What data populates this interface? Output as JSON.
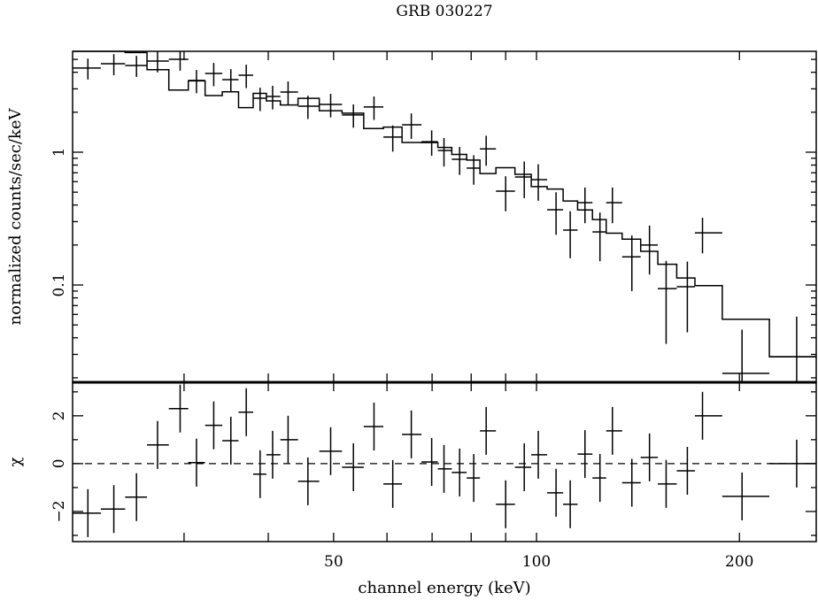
{
  "chart_data": [
    {
      "type": "scatter",
      "panel": "spectrum",
      "title": "GRB 030227",
      "xlabel": "channel energy (keV)",
      "ylabel": "normalized counts/sec/keV",
      "xscale": "log",
      "yscale": "log",
      "xlim": [
        20.5,
        260
      ],
      "ylim": [
        0.0185,
        5.75
      ],
      "y_tick_labels": [
        "1",
        "0.1"
      ],
      "y_tick_values": [
        1,
        0.1
      ],
      "energy_keV": [
        21.6,
        23.6,
        25.5,
        27.4,
        29.6,
        31.3,
        33.2,
        35.2,
        37.1,
        38.9,
        40.6,
        42.8,
        45.8,
        49.5,
        53.5,
        57.4,
        61.2,
        65.2,
        69.9,
        72.9,
        76.9,
        80.7,
        84.2,
        90.0,
        95.9,
        100.6,
        106.9,
        112.2,
        118.0,
        124.2,
        129.6,
        138.5,
        147.1,
        155.7,
        167.4,
        176.3,
        201.8,
        243.2
      ],
      "flux": [
        4.3,
        4.64,
        4.5,
        4.86,
        5.01,
        3.47,
        3.92,
        3.52,
        3.8,
        2.55,
        2.63,
        2.84,
        2.22,
        2.29,
        1.91,
        2.19,
        1.3,
        1.61,
        1.2,
        1.03,
        0.885,
        0.759,
        1.06,
        0.509,
        0.651,
        0.621,
        0.369,
        0.259,
        0.417,
        0.251,
        0.417,
        0.163,
        0.2,
        0.094,
        0.097,
        0.247,
        0.0216,
        0.0288
      ],
      "flux_err": [
        0.77,
        0.84,
        0.81,
        0.87,
        0.9,
        0.69,
        0.78,
        0.7,
        0.76,
        0.51,
        0.53,
        0.57,
        0.44,
        0.46,
        0.38,
        0.44,
        0.29,
        0.35,
        0.26,
        0.25,
        0.21,
        0.19,
        0.27,
        0.15,
        0.2,
        0.19,
        0.13,
        0.1,
        0.125,
        0.1,
        0.125,
        0.073,
        0.08,
        0.058,
        0.053,
        0.074,
        0.0245,
        0.029
      ],
      "series": [
        {
          "name": "data"
        },
        {
          "name": "model"
        }
      ]
    },
    {
      "type": "scatter",
      "panel": "residuals",
      "xlabel": "channel energy (keV)",
      "ylabel": "χ",
      "xscale": "log",
      "xlim": [
        20.5,
        260
      ],
      "ylim": [
        -3.26,
        3.4
      ],
      "x_tick_labels": [
        "50",
        "100",
        "200"
      ],
      "x_tick_values": [
        50,
        100,
        200
      ],
      "y_tick_labels": [
        "2",
        "0",
        "−2"
      ],
      "y_tick_values": [
        2,
        0,
        -2
      ],
      "chi": [
        -2.07,
        -1.9,
        -1.4,
        0.78,
        2.3,
        0.04,
        1.6,
        0.96,
        2.15,
        -0.44,
        0.37,
        1.0,
        -0.74,
        0.52,
        -0.15,
        1.55,
        -0.85,
        1.22,
        0.07,
        -0.22,
        -0.37,
        -0.6,
        1.37,
        -1.7,
        -0.15,
        0.37,
        -1.22,
        -1.7,
        0.4,
        -0.6,
        1.37,
        -0.8,
        0.26,
        -0.85,
        -0.3,
        2.0,
        -1.37,
        0.0
      ],
      "reference_line": 0
    }
  ]
}
